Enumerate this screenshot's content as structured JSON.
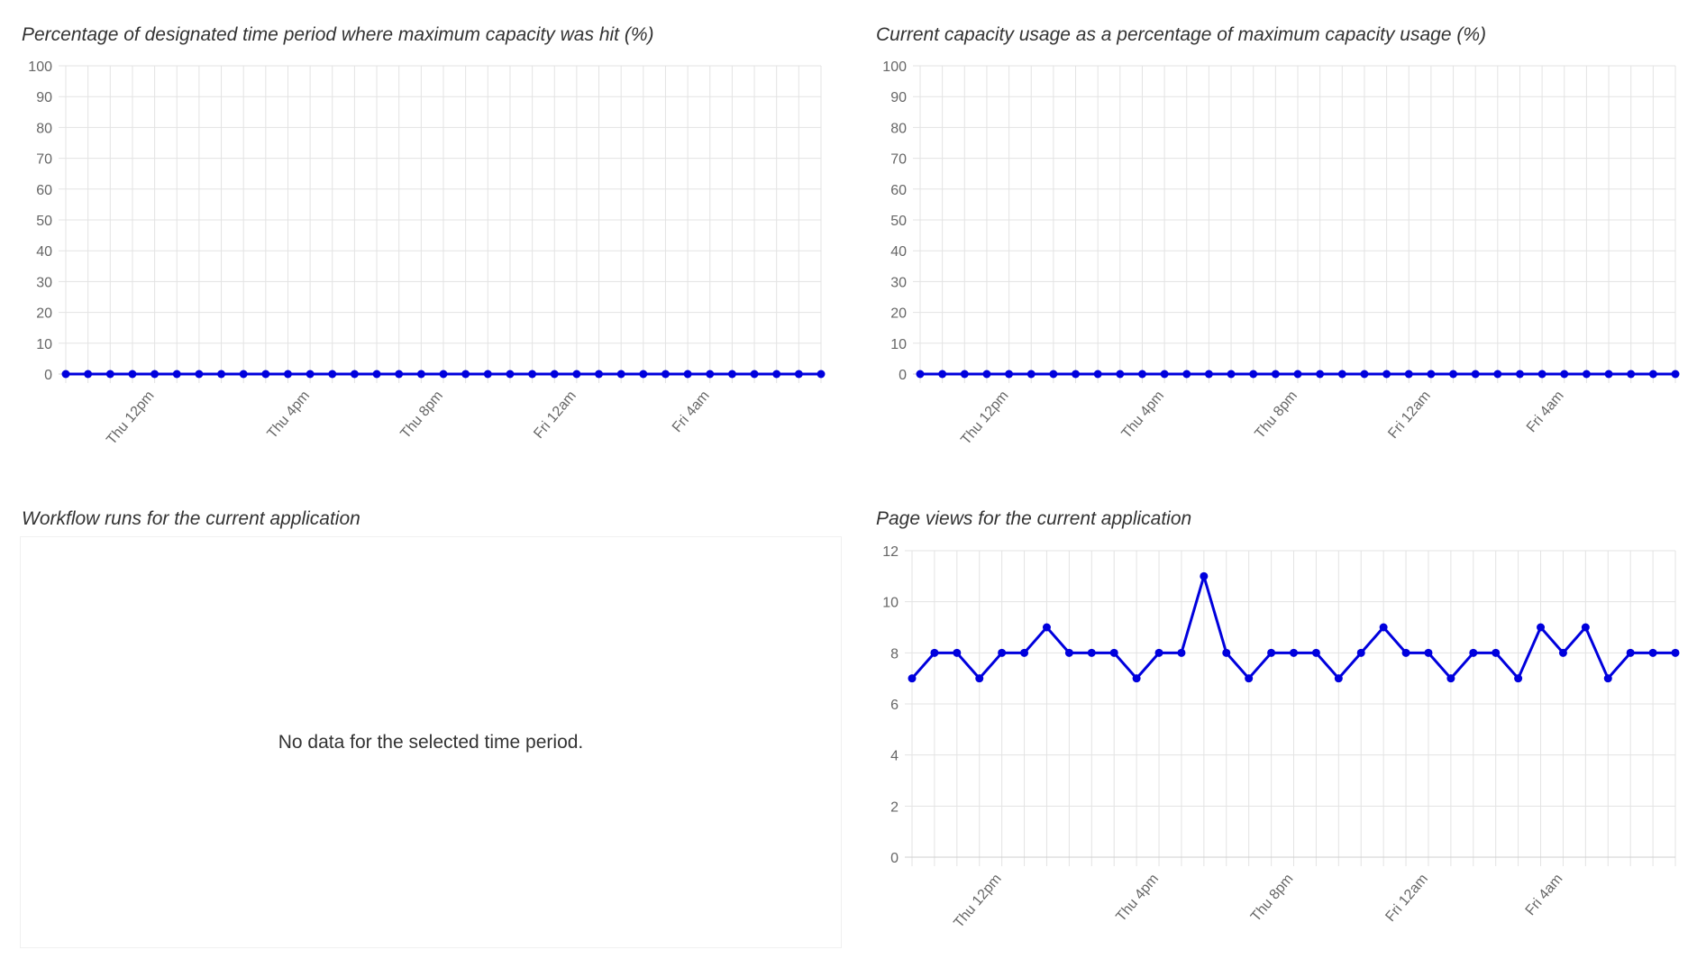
{
  "panels": {
    "empty_panel_title": "Workflow runs for the current application",
    "empty_message": "No data for the selected time period."
  },
  "colors": {
    "series": "#0000dd",
    "grid": "#e3e3e3",
    "tick": "#666666"
  },
  "chart_data": [
    {
      "type": "line",
      "title": "Percentage of designated time period where maximum capacity was hit (%)",
      "xlabel": "",
      "ylabel": "",
      "ylim": [
        0,
        100
      ],
      "yticks": [
        "0",
        "10",
        "20",
        "30",
        "40",
        "50",
        "60",
        "70",
        "80",
        "90",
        "100"
      ],
      "xtick_labels": [
        {
          "index": 4,
          "label": "Thu 12pm"
        },
        {
          "index": 11,
          "label": "Thu 4pm"
        },
        {
          "index": 17,
          "label": "Thu 8pm"
        },
        {
          "index": 23,
          "label": "Fri 12am"
        },
        {
          "index": 29,
          "label": "Fri 4am"
        }
      ],
      "values": [
        0,
        0,
        0,
        0,
        0,
        0,
        0,
        0,
        0,
        0,
        0,
        0,
        0,
        0,
        0,
        0,
        0,
        0,
        0,
        0,
        0,
        0,
        0,
        0,
        0,
        0,
        0,
        0,
        0,
        0,
        0,
        0,
        0,
        0,
        0
      ],
      "grid": true
    },
    {
      "type": "line",
      "title": "Current capacity usage as a percentage of maximum capacity usage (%)",
      "xlabel": "",
      "ylabel": "",
      "ylim": [
        0,
        100
      ],
      "yticks": [
        "0",
        "10",
        "20",
        "30",
        "40",
        "50",
        "60",
        "70",
        "80",
        "90",
        "100"
      ],
      "xtick_labels": [
        {
          "index": 4,
          "label": "Thu 12pm"
        },
        {
          "index": 11,
          "label": "Thu 4pm"
        },
        {
          "index": 17,
          "label": "Thu 8pm"
        },
        {
          "index": 23,
          "label": "Fri 12am"
        },
        {
          "index": 29,
          "label": "Fri 4am"
        }
      ],
      "values": [
        0,
        0,
        0,
        0,
        0,
        0,
        0,
        0,
        0,
        0,
        0,
        0,
        0,
        0,
        0,
        0,
        0,
        0,
        0,
        0,
        0,
        0,
        0,
        0,
        0,
        0,
        0,
        0,
        0,
        0,
        0,
        0,
        0,
        0,
        0
      ],
      "grid": true
    },
    {
      "type": "line",
      "title": "Page views for the current application",
      "xlabel": "",
      "ylabel": "",
      "ylim": [
        0,
        12
      ],
      "yticks": [
        "0",
        "2",
        "4",
        "6",
        "8",
        "10",
        "12"
      ],
      "xtick_labels": [
        {
          "index": 4,
          "label": "Thu 12pm"
        },
        {
          "index": 11,
          "label": "Thu 4pm"
        },
        {
          "index": 17,
          "label": "Thu 8pm"
        },
        {
          "index": 23,
          "label": "Fri 12am"
        },
        {
          "index": 29,
          "label": "Fri 4am"
        }
      ],
      "values": [
        7,
        8,
        8,
        7,
        8,
        8,
        9,
        8,
        8,
        8,
        7,
        8,
        8,
        11,
        8,
        7,
        8,
        8,
        8,
        7,
        8,
        9,
        8,
        8,
        7,
        8,
        8,
        7,
        9,
        8,
        9,
        7,
        8,
        8,
        8
      ],
      "grid": true
    }
  ]
}
